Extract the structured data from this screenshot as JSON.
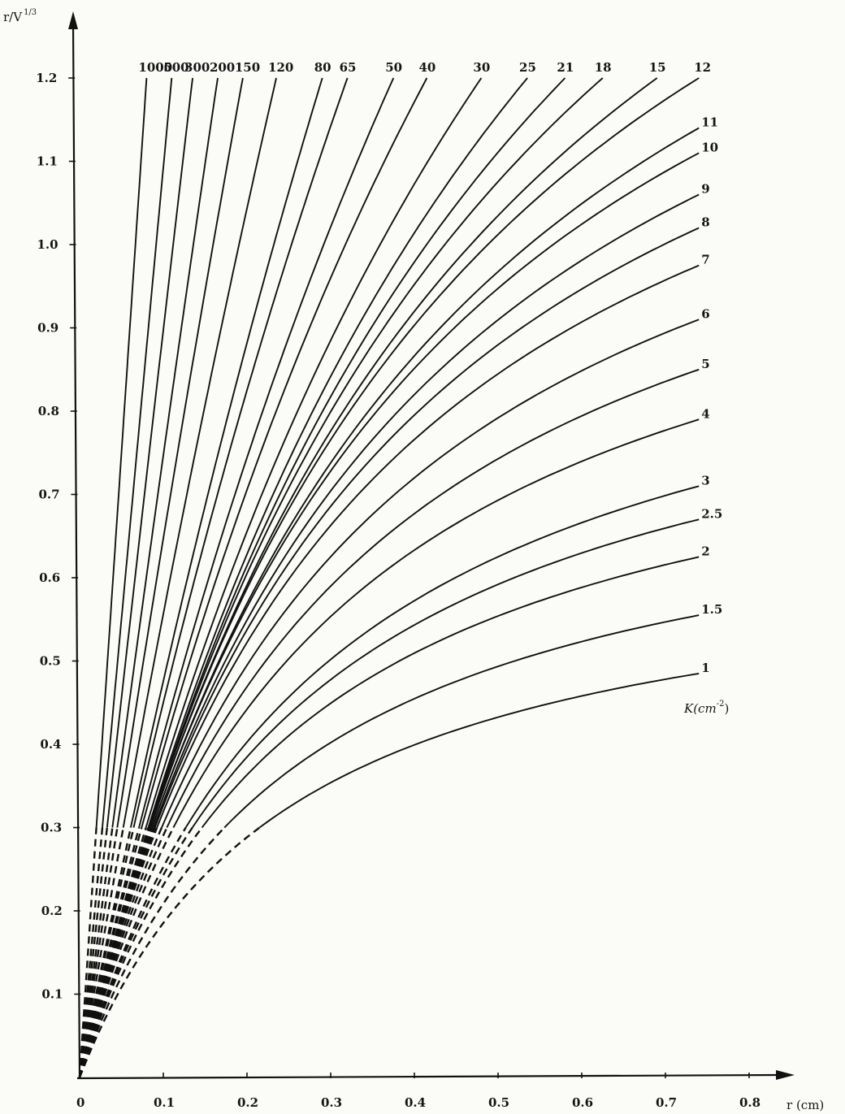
{
  "chart_data": {
    "type": "line",
    "title": "",
    "xlabel": "r (cm)",
    "ylabel": "r/V 1/3",
    "ylabel_exponent": "1/3",
    "legend_title": "K(cm-2)",
    "legend_title_exponent": "-2",
    "xlim": [
      0,
      0.85
    ],
    "ylim": [
      0,
      1.25
    ],
    "x_ticks": [
      0,
      0.1,
      0.2,
      0.3,
      0.4,
      0.5,
      0.6,
      0.7,
      0.8
    ],
    "x_tick_labels": [
      "0",
      "0.1",
      "0.2",
      "0.3",
      "0.4",
      "0.5",
      "0.6",
      "0.7",
      "0.8"
    ],
    "y_ticks": [
      0.1,
      0.2,
      0.3,
      0.4,
      0.5,
      0.6,
      0.7,
      0.8,
      0.9,
      1.0,
      1.1,
      1.2
    ],
    "y_tick_labels": [
      "0.1",
      "0.2",
      "0.3",
      "0.4",
      "0.5",
      "0.6",
      "0.7",
      "0.8",
      "0.9",
      "1.0",
      "1.1",
      "1.2"
    ],
    "dashed_below_y": 0.3,
    "grid": false,
    "series": [
      {
        "name": "1000",
        "x_end": 0.08,
        "y_end": 1.2
      },
      {
        "name": "500",
        "x_end": 0.11,
        "y_end": 1.2
      },
      {
        "name": "300",
        "x_end": 0.135,
        "y_end": 1.2
      },
      {
        "name": "200",
        "x_end": 0.165,
        "y_end": 1.2
      },
      {
        "name": "150",
        "x_end": 0.195,
        "y_end": 1.2
      },
      {
        "name": "120",
        "x_end": 0.235,
        "y_end": 1.2
      },
      {
        "name": "80",
        "x_end": 0.29,
        "y_end": 1.2
      },
      {
        "name": "65",
        "x_end": 0.32,
        "y_end": 1.2
      },
      {
        "name": "50",
        "x_end": 0.375,
        "y_end": 1.2
      },
      {
        "name": "40",
        "x_end": 0.415,
        "y_end": 1.2
      },
      {
        "name": "30",
        "x_end": 0.48,
        "y_end": 1.2
      },
      {
        "name": "25",
        "x_end": 0.535,
        "y_end": 1.2
      },
      {
        "name": "21",
        "x_end": 0.58,
        "y_end": 1.2
      },
      {
        "name": "18",
        "x_end": 0.625,
        "y_end": 1.2
      },
      {
        "name": "15",
        "x_end": 0.69,
        "y_end": 1.2
      },
      {
        "name": "12",
        "x_end": 0.74,
        "y_end": 1.2
      },
      {
        "name": "11",
        "x_end": 0.74,
        "y_end": 1.14
      },
      {
        "name": "10",
        "x_end": 0.74,
        "y_end": 1.11
      },
      {
        "name": "9",
        "x_end": 0.74,
        "y_end": 1.06
      },
      {
        "name": "8",
        "x_end": 0.74,
        "y_end": 1.02
      },
      {
        "name": "7",
        "x_end": 0.74,
        "y_end": 0.975
      },
      {
        "name": "6",
        "x_end": 0.74,
        "y_end": 0.91
      },
      {
        "name": "5",
        "x_end": 0.74,
        "y_end": 0.85
      },
      {
        "name": "4",
        "x_end": 0.74,
        "y_end": 0.79
      },
      {
        "name": "3",
        "x_end": 0.74,
        "y_end": 0.71
      },
      {
        "name": "2.5",
        "x_end": 0.74,
        "y_end": 0.67
      },
      {
        "name": "2",
        "x_end": 0.74,
        "y_end": 0.625
      },
      {
        "name": "1.5",
        "x_end": 0.74,
        "y_end": 0.555
      },
      {
        "name": "1",
        "x_end": 0.74,
        "y_end": 0.485
      }
    ]
  }
}
